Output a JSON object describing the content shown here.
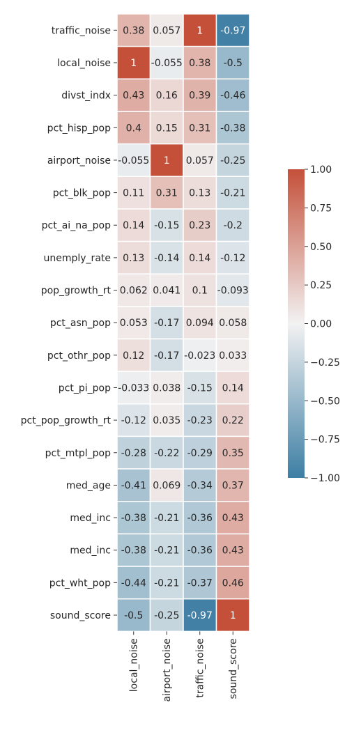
{
  "chart_data": {
    "type": "heatmap",
    "x": [
      "local_noise",
      "airport_noise",
      "traffic_noise",
      "sound_score"
    ],
    "y": [
      "traffic_noise",
      "local_noise",
      "divst_indx",
      "pct_hisp_pop",
      "airport_noise",
      "pct_blk_pop",
      "pct_ai_na_pop",
      "unemply_rate",
      "pop_growth_rt",
      "pct_asn_pop",
      "pct_othr_pop",
      "pct_pi_pop",
      "pct_pop_growth_rt",
      "pct_mtpl_pop",
      "med_age",
      "med_inc",
      "med_inc",
      "pct_wht_pop",
      "sound_score"
    ],
    "values": [
      [
        0.38,
        0.057,
        1,
        -0.97
      ],
      [
        1,
        -0.055,
        0.38,
        -0.5
      ],
      [
        0.43,
        0.16,
        0.39,
        -0.46
      ],
      [
        0.4,
        0.15,
        0.31,
        -0.38
      ],
      [
        -0.055,
        1,
        0.057,
        -0.25
      ],
      [
        0.11,
        0.31,
        0.13,
        -0.21
      ],
      [
        0.14,
        -0.15,
        0.23,
        -0.2
      ],
      [
        0.13,
        -0.14,
        0.14,
        -0.12
      ],
      [
        0.062,
        0.041,
        0.1,
        -0.093
      ],
      [
        0.053,
        -0.17,
        0.094,
        0.058
      ],
      [
        0.12,
        -0.17,
        -0.023,
        0.033
      ],
      [
        -0.033,
        0.038,
        -0.15,
        0.14
      ],
      [
        -0.12,
        0.035,
        -0.23,
        0.22
      ],
      [
        -0.28,
        -0.22,
        -0.29,
        0.35
      ],
      [
        -0.41,
        0.069,
        -0.34,
        0.37
      ],
      [
        -0.38,
        -0.21,
        -0.36,
        0.43
      ],
      [
        -0.38,
        -0.21,
        -0.36,
        0.43
      ],
      [
        -0.44,
        -0.21,
        -0.37,
        0.46
      ],
      [
        -0.5,
        -0.25,
        -0.97,
        1
      ]
    ],
    "labels": [
      [
        "0.38",
        "0.057",
        "1",
        "-0.97"
      ],
      [
        "1",
        "-0.055",
        "0.38",
        "-0.5"
      ],
      [
        "0.43",
        "0.16",
        "0.39",
        "-0.46"
      ],
      [
        "0.4",
        "0.15",
        "0.31",
        "-0.38"
      ],
      [
        "-0.055",
        "1",
        "0.057",
        "-0.25"
      ],
      [
        "0.11",
        "0.31",
        "0.13",
        "-0.21"
      ],
      [
        "0.14",
        "-0.15",
        "0.23",
        "-0.2"
      ],
      [
        "0.13",
        "-0.14",
        "0.14",
        "-0.12"
      ],
      [
        "0.062",
        "0.041",
        "0.1",
        "-0.093"
      ],
      [
        "0.053",
        "-0.17",
        "0.094",
        "0.058"
      ],
      [
        "0.12",
        "-0.17",
        "-0.023",
        "0.033"
      ],
      [
        "-0.033",
        "0.038",
        "-0.15",
        "0.14"
      ],
      [
        "-0.12",
        "0.035",
        "-0.23",
        "0.22"
      ],
      [
        "-0.28",
        "-0.22",
        "-0.29",
        "0.35"
      ],
      [
        "-0.41",
        "0.069",
        "-0.34",
        "0.37"
      ],
      [
        "-0.38",
        "-0.21",
        "-0.36",
        "0.43"
      ],
      [
        "-0.38",
        "-0.21",
        "-0.36",
        "0.43"
      ],
      [
        "-0.44",
        "-0.21",
        "-0.37",
        "0.46"
      ],
      [
        "-0.5",
        "-0.25",
        "-0.97",
        "1"
      ]
    ],
    "colorbar": {
      "vmin": -1,
      "vmax": 1,
      "ticks": [
        "1.00",
        "0.75",
        "0.50",
        "0.25",
        "0.00",
        "−0.25",
        "−0.50",
        "−0.75",
        "−1.00"
      ],
      "tick_values": [
        1,
        0.75,
        0.5,
        0.25,
        0,
        -0.25,
        -0.5,
        -0.75,
        -1
      ]
    },
    "colors": {
      "negative": "#3d7ea3",
      "center": "#f2f2f2",
      "positive": "#c4503a",
      "cell_border": "#ffffff",
      "text_dark": "#262626",
      "text_light": "#ffffff"
    },
    "title": "",
    "xlabel": "",
    "ylabel": ""
  }
}
